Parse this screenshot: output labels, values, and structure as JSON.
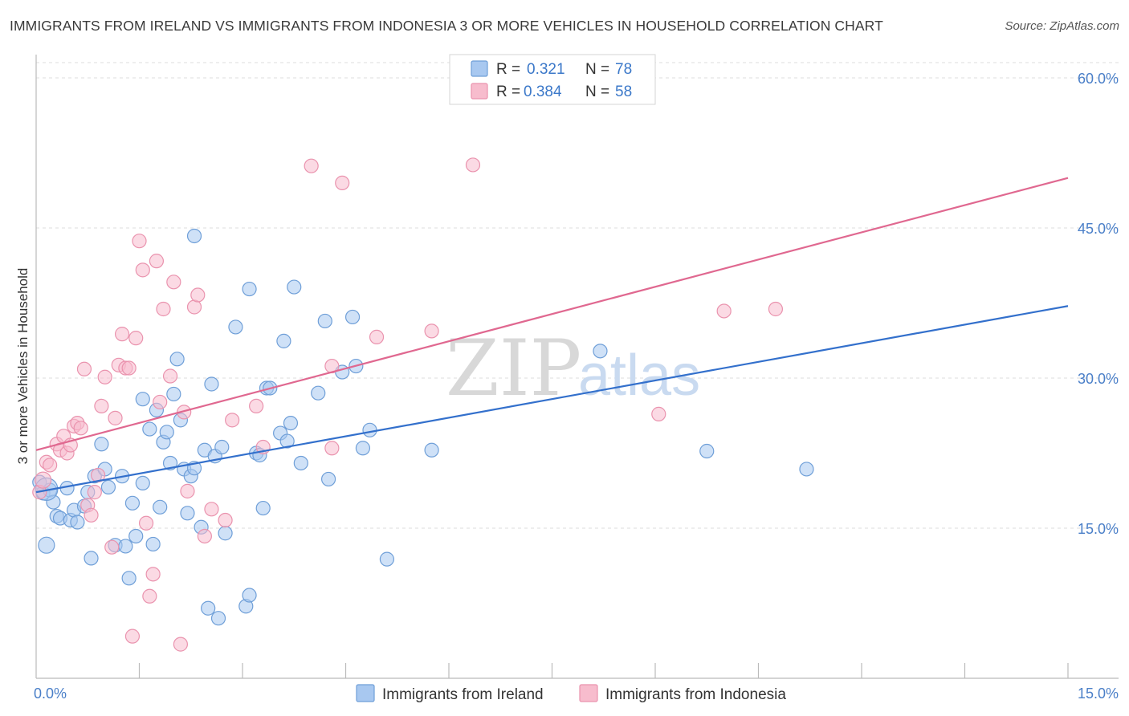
{
  "title": "IMMIGRANTS FROM IRELAND VS IMMIGRANTS FROM INDONESIA 3 OR MORE VEHICLES IN HOUSEHOLD CORRELATION CHART",
  "source": "Source: ZipAtlas.com",
  "watermark": {
    "zip": "ZIP",
    "atlas": "atlas"
  },
  "legend": {
    "r_label": "R =",
    "n_label": "N =",
    "items": [
      {
        "r": "0.321",
        "n": "78"
      },
      {
        "r": "0.384",
        "n": "58"
      }
    ]
  },
  "colors": {
    "ireland_fill": "#a8c8f0",
    "ireland_stroke": "#6f9fd8",
    "ireland_line": "#3370cc",
    "indonesia_fill": "#f7bccd",
    "indonesia_stroke": "#ea93ae",
    "indonesia_line": "#e06890",
    "grid": "#dddddd",
    "tick_label": "#4a7fc8"
  },
  "chart_data": {
    "type": "scatter",
    "xlabel": "",
    "ylabel": "3 or more Vehicles in Household",
    "xlim": [
      0,
      15
    ],
    "ylim": [
      0,
      60
    ],
    "x_tick_labels": [
      {
        "value": 0,
        "label": "0.0%"
      },
      {
        "value": 15,
        "label": "15.0%"
      }
    ],
    "y_tick_labels": [
      {
        "value": 15,
        "label": "15.0%"
      },
      {
        "value": 30,
        "label": "30.0%"
      },
      {
        "value": 45,
        "label": "45.0%"
      },
      {
        "value": 60,
        "label": "60.0%"
      }
    ],
    "grid": true,
    "legend_position": "top-center",
    "series": [
      {
        "name": "Immigrants from Ireland",
        "trend": {
          "x0": 0,
          "y0": 18.6,
          "x1": 15,
          "y1": 37.2
        },
        "points": [
          [
            0.05,
            19.6
          ],
          [
            0.1,
            18.5
          ],
          [
            0.15,
            13.3
          ],
          [
            0.2,
            18.8
          ],
          [
            0.25,
            17.6
          ],
          [
            0.3,
            16.2
          ],
          [
            0.35,
            16.0
          ],
          [
            0.45,
            19.0
          ],
          [
            0.5,
            15.8
          ],
          [
            0.55,
            16.8
          ],
          [
            0.6,
            15.6
          ],
          [
            0.7,
            17.2
          ],
          [
            0.75,
            18.6
          ],
          [
            0.8,
            12.0
          ],
          [
            0.85,
            20.2
          ],
          [
            0.95,
            23.4
          ],
          [
            1.0,
            20.9
          ],
          [
            1.05,
            19.1
          ],
          [
            1.15,
            13.3
          ],
          [
            1.25,
            20.2
          ],
          [
            1.3,
            13.2
          ],
          [
            1.35,
            10.0
          ],
          [
            1.4,
            17.5
          ],
          [
            1.45,
            14.2
          ],
          [
            1.55,
            27.9
          ],
          [
            1.55,
            19.5
          ],
          [
            1.65,
            24.9
          ],
          [
            1.7,
            13.4
          ],
          [
            1.75,
            26.8
          ],
          [
            1.8,
            17.1
          ],
          [
            1.85,
            23.6
          ],
          [
            1.9,
            24.6
          ],
          [
            1.95,
            21.5
          ],
          [
            2.0,
            28.4
          ],
          [
            2.05,
            31.9
          ],
          [
            2.1,
            25.8
          ],
          [
            2.15,
            20.9
          ],
          [
            2.2,
            16.5
          ],
          [
            2.25,
            20.2
          ],
          [
            2.3,
            21.0
          ],
          [
            2.3,
            44.2
          ],
          [
            2.4,
            15.1
          ],
          [
            2.45,
            22.8
          ],
          [
            2.5,
            7.0
          ],
          [
            2.55,
            29.4
          ],
          [
            2.6,
            22.2
          ],
          [
            2.65,
            6.0
          ],
          [
            2.7,
            23.1
          ],
          [
            2.75,
            14.5
          ],
          [
            2.9,
            35.1
          ],
          [
            3.05,
            7.2
          ],
          [
            3.1,
            8.3
          ],
          [
            3.1,
            38.9
          ],
          [
            3.2,
            22.5
          ],
          [
            3.25,
            22.3
          ],
          [
            3.3,
            17.0
          ],
          [
            3.35,
            29.0
          ],
          [
            3.4,
            29.0
          ],
          [
            3.55,
            24.5
          ],
          [
            3.6,
            33.7
          ],
          [
            3.65,
            23.7
          ],
          [
            3.7,
            25.5
          ],
          [
            3.75,
            39.1
          ],
          [
            3.85,
            21.5
          ],
          [
            4.1,
            28.5
          ],
          [
            4.2,
            35.7
          ],
          [
            4.25,
            19.9
          ],
          [
            4.45,
            30.6
          ],
          [
            4.6,
            36.1
          ],
          [
            4.65,
            31.2
          ],
          [
            4.75,
            23.0
          ],
          [
            4.85,
            24.8
          ],
          [
            5.1,
            11.9
          ],
          [
            5.75,
            22.8
          ],
          [
            8.2,
            32.7
          ],
          [
            9.75,
            22.7
          ],
          [
            11.2,
            20.9
          ],
          [
            0.15,
            18.9
          ]
        ]
      },
      {
        "name": "Immigrants from Indonesia",
        "trend": {
          "x0": 0,
          "y0": 22.8,
          "x1": 15,
          "y1": 50.0
        },
        "points": [
          [
            0.05,
            18.6
          ],
          [
            0.15,
            21.6
          ],
          [
            0.2,
            21.3
          ],
          [
            0.3,
            23.4
          ],
          [
            0.35,
            22.8
          ],
          [
            0.4,
            24.2
          ],
          [
            0.45,
            22.5
          ],
          [
            0.5,
            23.3
          ],
          [
            0.55,
            25.2
          ],
          [
            0.6,
            25.5
          ],
          [
            0.65,
            25.0
          ],
          [
            0.7,
            30.9
          ],
          [
            0.75,
            17.3
          ],
          [
            0.8,
            16.3
          ],
          [
            0.85,
            18.6
          ],
          [
            0.9,
            20.3
          ],
          [
            0.95,
            27.2
          ],
          [
            1.0,
            30.1
          ],
          [
            1.1,
            13.1
          ],
          [
            1.15,
            26.0
          ],
          [
            1.2,
            31.3
          ],
          [
            1.25,
            34.4
          ],
          [
            1.3,
            31.0
          ],
          [
            1.35,
            31.0
          ],
          [
            1.4,
            4.2
          ],
          [
            1.45,
            34.0
          ],
          [
            1.5,
            43.7
          ],
          [
            1.55,
            40.8
          ],
          [
            1.6,
            15.5
          ],
          [
            1.7,
            10.4
          ],
          [
            1.75,
            41.7
          ],
          [
            1.8,
            27.6
          ],
          [
            1.85,
            36.9
          ],
          [
            1.95,
            30.2
          ],
          [
            2.0,
            39.6
          ],
          [
            2.1,
            3.4
          ],
          [
            2.15,
            26.6
          ],
          [
            2.2,
            18.7
          ],
          [
            2.3,
            37.1
          ],
          [
            2.35,
            38.3
          ],
          [
            2.45,
            14.2
          ],
          [
            2.55,
            16.9
          ],
          [
            2.75,
            15.8
          ],
          [
            2.85,
            25.8
          ],
          [
            3.2,
            27.2
          ],
          [
            3.3,
            23.1
          ],
          [
            4.0,
            51.2
          ],
          [
            4.3,
            23.0
          ],
          [
            4.3,
            31.2
          ],
          [
            4.45,
            49.5
          ],
          [
            4.95,
            34.1
          ],
          [
            5.75,
            34.7
          ],
          [
            6.35,
            51.3
          ],
          [
            9.05,
            26.4
          ],
          [
            10.0,
            36.7
          ],
          [
            10.75,
            36.9
          ],
          [
            1.65,
            8.2
          ],
          [
            0.1,
            19.8
          ]
        ]
      }
    ]
  },
  "bottom_legend": [
    {
      "label": "Immigrants from Ireland"
    },
    {
      "label": "Immigrants from Indonesia"
    }
  ]
}
